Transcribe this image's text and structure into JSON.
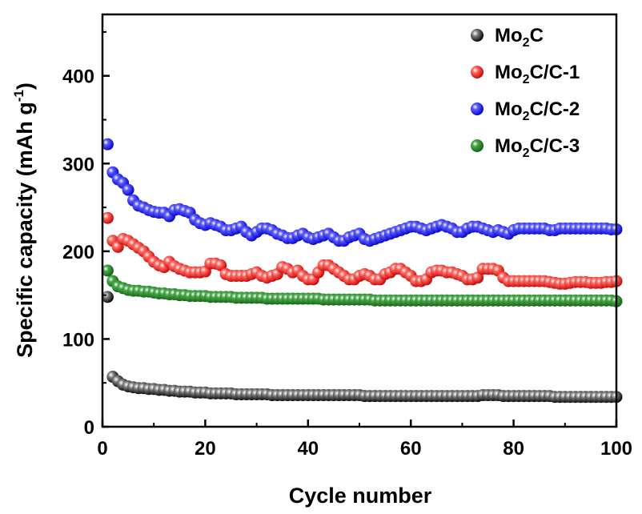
{
  "chart_data": {
    "type": "scatter",
    "xlabel": "Cycle number",
    "ylabel": "Specific capacity (mAh g⁻¹)",
    "ylabel_parts": [
      "Specific capacity (mAh g",
      "-1",
      ")"
    ],
    "xlim": [
      0,
      100
    ],
    "ylim": [
      0,
      470
    ],
    "xticks": [
      0,
      20,
      40,
      60,
      80,
      100
    ],
    "yticks": [
      0,
      100,
      200,
      300,
      400
    ],
    "grid": false,
    "legend_position": "top-right",
    "series": [
      {
        "name": "Mo2C",
        "label_parts": [
          "Mo",
          "2",
          "C"
        ],
        "color": "#111111",
        "values": [
          148,
          57,
          52,
          48,
          46,
          45,
          44,
          44,
          43,
          43,
          42,
          42,
          41,
          41,
          40,
          40,
          40,
          39,
          39,
          39,
          38,
          38,
          38,
          38,
          38,
          37,
          37,
          37,
          37,
          37,
          37,
          37,
          36,
          36,
          36,
          36,
          36,
          36,
          36,
          36,
          36,
          36,
          36,
          36,
          36,
          36,
          36,
          36,
          36,
          36,
          35,
          35,
          35,
          35,
          35,
          35,
          35,
          35,
          35,
          35,
          35,
          35,
          35,
          35,
          35,
          35,
          35,
          35,
          35,
          35,
          35,
          35,
          35,
          36,
          36,
          36,
          36,
          35,
          35,
          35,
          35,
          35,
          35,
          35,
          35,
          35,
          35,
          34,
          34,
          34,
          34,
          34,
          34,
          34,
          34,
          34,
          34,
          34,
          34,
          34
        ]
      },
      {
        "name": "Mo2C/C-1",
        "label_parts": [
          "Mo",
          "2",
          "C/C-1"
        ],
        "color": "#e8251f",
        "values": [
          238,
          212,
          205,
          214,
          212,
          208,
          204,
          200,
          194,
          188,
          184,
          182,
          188,
          183,
          180,
          178,
          176,
          176,
          176,
          177,
          186,
          186,
          184,
          174,
          172,
          172,
          172,
          172,
          174,
          176,
          172,
          170,
          172,
          174,
          182,
          180,
          176,
          178,
          172,
          168,
          168,
          176,
          184,
          184,
          180,
          176,
          172,
          168,
          168,
          172,
          174,
          172,
          168,
          168,
          174,
          176,
          180,
          180,
          176,
          172,
          166,
          166,
          168,
          176,
          178,
          178,
          176,
          176,
          174,
          172,
          168,
          168,
          170,
          180,
          180,
          180,
          178,
          170,
          166,
          166,
          166,
          166,
          166,
          166,
          166,
          166,
          165,
          164,
          163,
          163,
          164,
          165,
          165,
          165,
          164,
          164,
          164,
          165,
          165,
          166
        ]
      },
      {
        "name": "Mo2C/C-2",
        "label_parts": [
          "Mo",
          "2",
          "C/C-2"
        ],
        "color": "#2a2ae8",
        "values": [
          322,
          290,
          282,
          278,
          270,
          258,
          252,
          250,
          247,
          245,
          244,
          244,
          240,
          247,
          248,
          246,
          244,
          236,
          232,
          230,
          232,
          230,
          228,
          224,
          224,
          226,
          228,
          222,
          218,
          222,
          226,
          226,
          224,
          220,
          218,
          215,
          215,
          218,
          220,
          216,
          214,
          216,
          218,
          220,
          216,
          212,
          212,
          216,
          218,
          220,
          214,
          212,
          214,
          216,
          218,
          220,
          222,
          224,
          226,
          228,
          228,
          226,
          224,
          226,
          228,
          230,
          228,
          226,
          222,
          222,
          226,
          228,
          228,
          226,
          224,
          222,
          224,
          222,
          220,
          224,
          226,
          226,
          226,
          226,
          226,
          226,
          224,
          224,
          226,
          226,
          226,
          226,
          226,
          226,
          226,
          226,
          226,
          226,
          225,
          225
        ]
      },
      {
        "name": "Mo2C/C-3",
        "label_parts": [
          "Mo",
          "2",
          "C/C-3"
        ],
        "color": "#2c7f2c",
        "values": [
          178,
          166,
          160,
          158,
          156,
          155,
          155,
          154,
          154,
          153,
          152,
          152,
          151,
          151,
          150,
          150,
          149,
          149,
          149,
          149,
          148,
          148,
          148,
          148,
          148,
          147,
          147,
          147,
          147,
          147,
          147,
          146,
          146,
          146,
          146,
          146,
          146,
          146,
          146,
          146,
          146,
          146,
          145,
          145,
          145,
          145,
          145,
          145,
          145,
          145,
          145,
          145,
          144,
          144,
          144,
          144,
          144,
          144,
          144,
          144,
          144,
          144,
          144,
          144,
          144,
          144,
          144,
          144,
          144,
          144,
          144,
          144,
          144,
          144,
          144,
          144,
          144,
          144,
          144,
          144,
          144,
          144,
          144,
          144,
          144,
          144,
          144,
          144,
          144,
          144,
          144,
          144,
          144,
          144,
          144,
          144,
          144,
          144,
          144,
          143
        ]
      }
    ]
  }
}
